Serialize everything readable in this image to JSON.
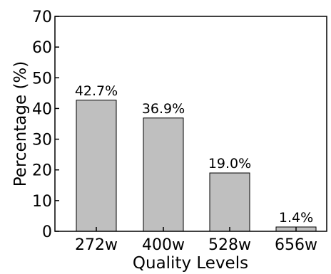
{
  "chart_data": {
    "type": "bar",
    "categories": [
      "272w",
      "400w",
      "528w",
      "656w"
    ],
    "values": [
      42.7,
      36.9,
      19.0,
      1.4
    ],
    "data_labels": [
      "42.7%",
      "36.9%",
      "19.0%",
      "1.4%"
    ],
    "xlabel": "Quality Levels",
    "ylabel": "Percentage (%)",
    "ylim": [
      0,
      70
    ],
    "yticks": [
      0,
      10,
      20,
      30,
      40,
      50,
      60,
      70
    ],
    "grid": false,
    "bar_color": "#bfbfbf"
  }
}
